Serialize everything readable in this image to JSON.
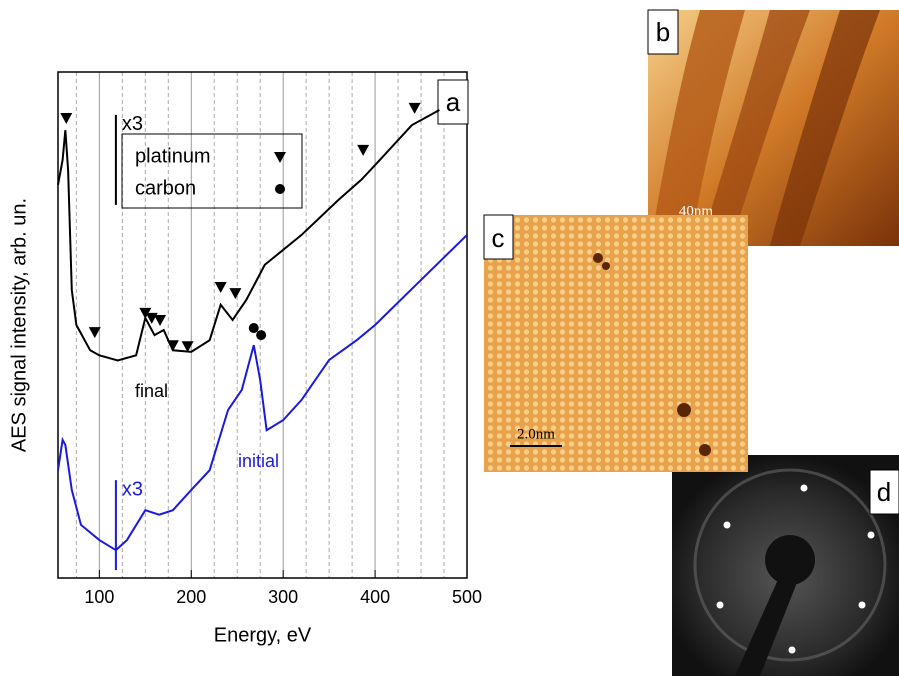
{
  "chart_data": {
    "type": "line",
    "xlabel": "Energy, eV",
    "ylabel": "AES signal intensity, arb. un.",
    "panel_label": "a",
    "xlim": [
      55,
      500
    ],
    "ylim": [
      0,
      100
    ],
    "xticks": [
      100,
      200,
      300,
      400,
      500
    ],
    "xminorticks": [
      75,
      125,
      150,
      175,
      225,
      250,
      275,
      325,
      350,
      375,
      425,
      450,
      475
    ],
    "grid": true,
    "series": [
      {
        "name": "final",
        "color": "#000000",
        "scale_label": "x3",
        "scale_at": 118,
        "x": [
          55,
          60,
          63,
          66,
          70,
          75,
          90,
          100,
          120,
          140,
          150,
          160,
          170,
          180,
          200,
          220,
          232,
          245,
          260,
          280,
          320,
          360,
          385,
          400,
          440,
          470
        ],
        "values": [
          77.7,
          82.6,
          88.5,
          80.6,
          56.9,
          50,
          45,
          44,
          43,
          44,
          51.4,
          48,
          49,
          45,
          44.7,
          47,
          54,
          51,
          55,
          61.9,
          67.8,
          74.7,
          78.7,
          81.6,
          89.5,
          92.5
        ]
      },
      {
        "name": "initial",
        "color": "#1a1adc",
        "scale_label": "x3",
        "scale_at": 118,
        "x": [
          55,
          60,
          63,
          70,
          80,
          100,
          118,
          130,
          150,
          165,
          180,
          200,
          220,
          240,
          255,
          268,
          275,
          282,
          300,
          320,
          350,
          380,
          400,
          450,
          500
        ],
        "values": [
          21.3,
          27.3,
          26.3,
          17.4,
          10.5,
          7.5,
          5.5,
          7.5,
          13.4,
          12.5,
          13.4,
          17.4,
          21.3,
          33.2,
          37.2,
          46,
          39.1,
          29.2,
          31.2,
          35.2,
          43.1,
          47,
          50,
          58.9,
          67.8
        ]
      }
    ],
    "marker_sets": [
      {
        "name": "platinum",
        "symbol": "triangle",
        "color": "#000000",
        "x": [
          64,
          95,
          150,
          157,
          166,
          180,
          196,
          232,
          248,
          387,
          443
        ],
        "values": [
          90.9,
          48.6,
          52.4,
          51.4,
          51.0,
          46.0,
          45.8,
          57.5,
          56.3,
          84.6,
          92.9
        ]
      },
      {
        "name": "carbon",
        "symbol": "circle",
        "color": "#000000",
        "x": [
          268,
          276
        ],
        "values": [
          49.4,
          48.0
        ]
      }
    ]
  },
  "panels": [
    {
      "label": "b",
      "scalebar": "40nm"
    },
    {
      "label": "c",
      "scalebar": "2.0nm"
    },
    {
      "label": "d"
    }
  ]
}
